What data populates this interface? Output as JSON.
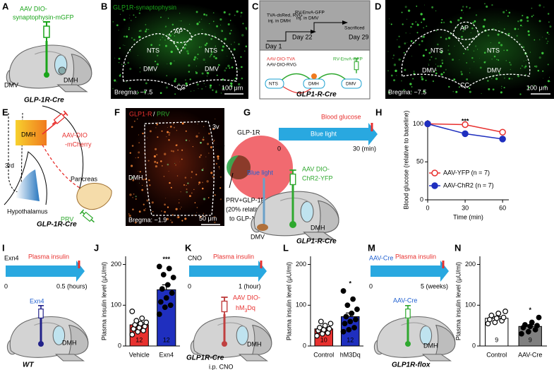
{
  "panels": {
    "A": {
      "label": "A",
      "texts": [
        "AAV DIO-",
        "synaptophysin-mGFP",
        "DMV",
        "DMH",
        "GLP-1R-Cre"
      ]
    },
    "B": {
      "label": "B",
      "texts": [
        "GLP1R-synaptophysin",
        "AP",
        "NTS",
        "NTS",
        "DMV",
        "DMV",
        "CC",
        "Bregma: −7.5",
        "100 μm"
      ]
    },
    "C": {
      "label": "C",
      "texts": [
        "TVA-dsRed, RVG",
        "inj. in DMH",
        "RV-EnvA-GFP",
        "inj. in DMV",
        "Sacrificed",
        "Day 1",
        "Day 22",
        "Day 29",
        "AAV-DIO-TVA",
        "AAV-DIO-RVG",
        "RV-EnvA-GFP",
        "NTS",
        "DMH",
        "DMV",
        "GLP1-R-Cre"
      ]
    },
    "D": {
      "label": "D",
      "texts": [
        "NTS",
        "AP",
        "NTS",
        "DMV",
        "CC",
        "DMV",
        "Bregma: −7.5",
        "100 μm"
      ]
    },
    "E": {
      "label": "E",
      "texts": [
        "3rd",
        "DMH",
        "AAV-DIO",
        "-mCherry",
        "Pancreas",
        "PRV",
        "Hypothalamus",
        "GLP-1R-Cre"
      ]
    },
    "F": {
      "label": "F",
      "texts": [
        "GLP1-R",
        "/",
        "PRV",
        "3v",
        "DMH",
        "Bregma: −1.9",
        "50 μm",
        "GLP-1R",
        "PRV",
        "PRV+GLP-1R",
        "(20% relative",
        "to GLP-1R)"
      ]
    },
    "G": {
      "label": "G",
      "texts": [
        "Blood glucose",
        "Blue light",
        "0",
        "30 (min)",
        "Blue light",
        "AAV DIO-",
        "ChR2-YFP",
        "DMV",
        "DMH",
        "GLP1-R-Cre"
      ]
    },
    "I": {
      "label": "I",
      "texts": [
        "Exn4",
        "Plasma insulin",
        "0",
        "0.5 (hours)",
        "Exn4",
        "DMH",
        "WT"
      ]
    },
    "K": {
      "label": "K",
      "texts": [
        "CNO",
        "Plasma insulin",
        "0",
        "1 (hour)",
        "AAV DIO-",
        "hM",
        "3",
        "Dq",
        "DMH",
        "GLP1R-Cre",
        "i.p. CNO"
      ]
    },
    "M": {
      "label": "M",
      "texts": [
        "AAV-Cre",
        "Plasma insulin",
        "0",
        "5 (weeks)",
        "AAV-Cre",
        "DMH",
        "GLP1R-flox"
      ]
    }
  },
  "chart_data": [
    {
      "label": "H",
      "type": "line",
      "x": [
        0,
        30,
        60
      ],
      "series": [
        {
          "name": "AAV-YFP (n = 7)",
          "color": "#e8312f",
          "filled": false,
          "values": [
            100,
            99,
            89
          ]
        },
        {
          "name": "AAV-ChR2 (n = 7)",
          "color": "#1f2fbf",
          "filled": true,
          "values": [
            100,
            87,
            80
          ]
        }
      ],
      "xlim": [
        0,
        65
      ],
      "ylim": [
        0,
        105
      ],
      "xticks": [
        0,
        30,
        60
      ],
      "yticks": [
        0,
        50,
        100
      ],
      "x_label": "Time (min)",
      "y_label": "Blood glucose (relative to baseline)",
      "annotation": "***"
    },
    {
      "label": "J",
      "type": "bar",
      "categories": [
        "Vehicle",
        "Exn4"
      ],
      "values": [
        52,
        138
      ],
      "errors": [
        5,
        12
      ],
      "colors": [
        "#e8312f",
        "#1f2fbf"
      ],
      "point_filled": [
        false,
        true
      ],
      "n_labels": [
        "12",
        "12"
      ],
      "points": [
        [
          28,
          35,
          38,
          42,
          45,
          48,
          52,
          55,
          58,
          62,
          68,
          85
        ],
        [
          78,
          95,
          100,
          108,
          118,
          130,
          140,
          150,
          168,
          175,
          190,
          195
        ]
      ],
      "ylim": [
        0,
        220
      ],
      "yticks": [
        0,
        100,
        200
      ],
      "y_label": "Plasma insulin level (μU/ml)",
      "annotation": "***"
    },
    {
      "label": "L",
      "type": "bar",
      "categories": [
        "Control",
        "hM3Dq"
      ],
      "values": [
        42,
        72
      ],
      "errors": [
        4,
        9
      ],
      "colors": [
        "#e8312f",
        "#1f2fbf"
      ],
      "point_filled": [
        false,
        true
      ],
      "n_labels": [
        "10",
        "12"
      ],
      "points": [
        [
          25,
          30,
          32,
          38,
          40,
          42,
          45,
          50,
          55,
          60
        ],
        [
          35,
          40,
          45,
          55,
          60,
          65,
          72,
          80,
          90,
          100,
          115,
          135
        ]
      ],
      "ylim": [
        0,
        220
      ],
      "yticks": [
        0,
        100,
        200
      ],
      "y_label": "Plasma insulin level (μU/ml)",
      "annotation": "*"
    },
    {
      "label": "N",
      "type": "bar",
      "categories": [
        "Control",
        "AAV-Cre"
      ],
      "values": [
        68,
        48
      ],
      "errors": [
        4,
        4
      ],
      "colors": [
        "#ffffff",
        "#808080"
      ],
      "point_filled": [
        false,
        true
      ],
      "n_labels": [
        "9",
        "9"
      ],
      "points": [
        [
          55,
          58,
          62,
          65,
          68,
          70,
          75,
          80,
          85
        ],
        [
          30,
          35,
          40,
          45,
          48,
          50,
          52,
          58,
          70
        ]
      ],
      "ylim": [
        0,
        220
      ],
      "yticks": [
        0,
        100,
        200
      ],
      "y_label": "Plasma insulin level (μU/ml)",
      "annotation": "*"
    }
  ]
}
